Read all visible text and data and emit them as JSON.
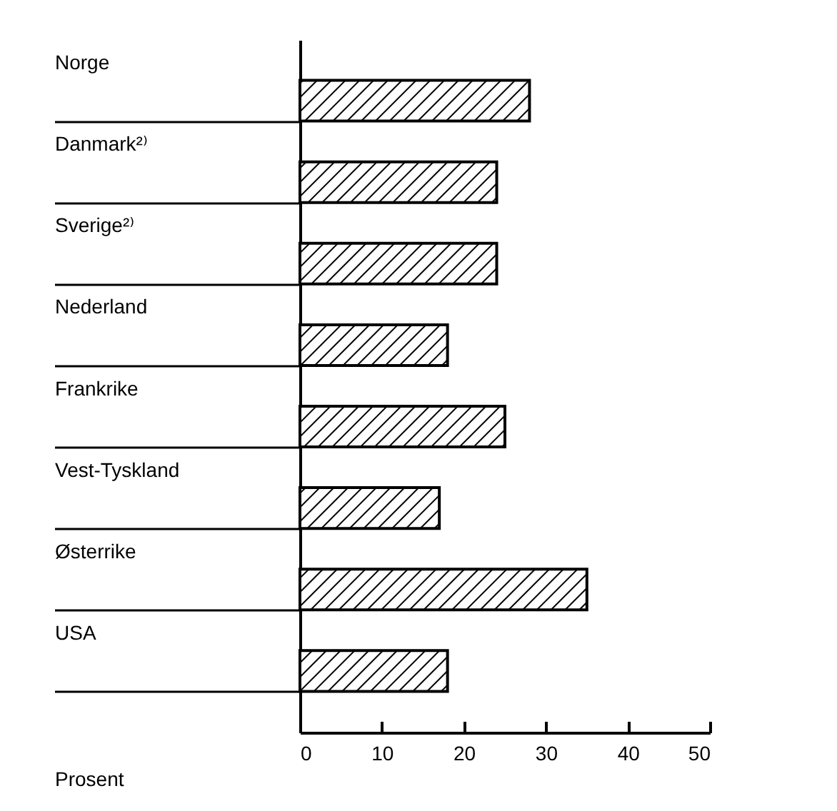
{
  "chart_data": {
    "type": "bar",
    "orientation": "horizontal",
    "xlabel": "Prosent",
    "categories": [
      "Norge",
      "Danmark²⁾",
      "Sverige²⁾",
      "Nederland",
      "Frankrike",
      "Vest-Tyskland",
      "Østerrike",
      "USA"
    ],
    "values": [
      28,
      24,
      24,
      18,
      25,
      17,
      35,
      18
    ],
    "color": "#000000",
    "xlim": [
      0,
      50
    ],
    "xticks": [
      0,
      10,
      20,
      30,
      40,
      50
    ],
    "grid": false
  }
}
